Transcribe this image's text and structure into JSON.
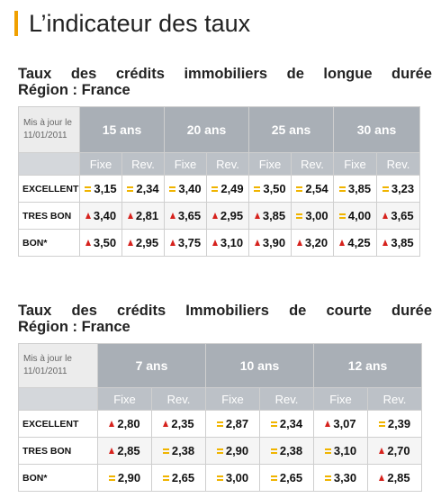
{
  "page": {
    "title": "L’indicateur des taux"
  },
  "long": {
    "title_line1": "Taux des crédits immobiliers de longue durée",
    "title_line2": "Région : France",
    "updated_label": "Mis à jour le",
    "updated_date": "11/01/2011",
    "terms": [
      "15 ans",
      "20 ans",
      "25 ans",
      "30 ans"
    ],
    "sub_fixe": "Fixe",
    "sub_rev": "Rev.",
    "rows": [
      {
        "label": "EXCELLENT",
        "cells": [
          {
            "v": "3,15",
            "t": "equal"
          },
          {
            "v": "2,34",
            "t": "equal"
          },
          {
            "v": "3,40",
            "t": "equal"
          },
          {
            "v": "2,49",
            "t": "equal"
          },
          {
            "v": "3,50",
            "t": "equal"
          },
          {
            "v": "2,54",
            "t": "equal"
          },
          {
            "v": "3,85",
            "t": "equal"
          },
          {
            "v": "3,23",
            "t": "equal"
          }
        ]
      },
      {
        "label": "TRES BON",
        "cells": [
          {
            "v": "3,40",
            "t": "up"
          },
          {
            "v": "2,81",
            "t": "up"
          },
          {
            "v": "3,65",
            "t": "up"
          },
          {
            "v": "2,95",
            "t": "up"
          },
          {
            "v": "3,85",
            "t": "up"
          },
          {
            "v": "3,00",
            "t": "equal"
          },
          {
            "v": "4,00",
            "t": "equal"
          },
          {
            "v": "3,65",
            "t": "up"
          }
        ]
      },
      {
        "label": "BON*",
        "cells": [
          {
            "v": "3,50",
            "t": "up"
          },
          {
            "v": "2,95",
            "t": "up"
          },
          {
            "v": "3,75",
            "t": "up"
          },
          {
            "v": "3,10",
            "t": "up"
          },
          {
            "v": "3,90",
            "t": "up"
          },
          {
            "v": "3,20",
            "t": "up"
          },
          {
            "v": "4,25",
            "t": "up"
          },
          {
            "v": "3,85",
            "t": "up"
          }
        ]
      }
    ]
  },
  "short": {
    "title_line1": "Taux des crédits Immobiliers de courte durée",
    "title_line2": "Région : France",
    "updated_label": "Mis à jour le",
    "updated_date": "11/01/2011",
    "terms": [
      "7 ans",
      "10 ans",
      "12 ans"
    ],
    "sub_fixe": "Fixe",
    "sub_rev": "Rev.",
    "rows": [
      {
        "label": "EXCELLENT",
        "cells": [
          {
            "v": "2,80",
            "t": "up"
          },
          {
            "v": "2,35",
            "t": "up"
          },
          {
            "v": "2,87",
            "t": "equal"
          },
          {
            "v": "2,34",
            "t": "equal"
          },
          {
            "v": "3,07",
            "t": "up"
          },
          {
            "v": "2,39",
            "t": "equal"
          }
        ]
      },
      {
        "label": "TRES BON",
        "cells": [
          {
            "v": "2,85",
            "t": "up"
          },
          {
            "v": "2,38",
            "t": "equal"
          },
          {
            "v": "2,90",
            "t": "equal"
          },
          {
            "v": "2,38",
            "t": "equal"
          },
          {
            "v": "3,10",
            "t": "equal"
          },
          {
            "v": "2,70",
            "t": "up"
          }
        ]
      },
      {
        "label": "BON*",
        "cells": [
          {
            "v": "2,90",
            "t": "equal"
          },
          {
            "v": "2,65",
            "t": "equal"
          },
          {
            "v": "3,00",
            "t": "equal"
          },
          {
            "v": "2,65",
            "t": "equal"
          },
          {
            "v": "3,30",
            "t": "equal"
          },
          {
            "v": "2,85",
            "t": "up"
          }
        ]
      }
    ]
  }
}
